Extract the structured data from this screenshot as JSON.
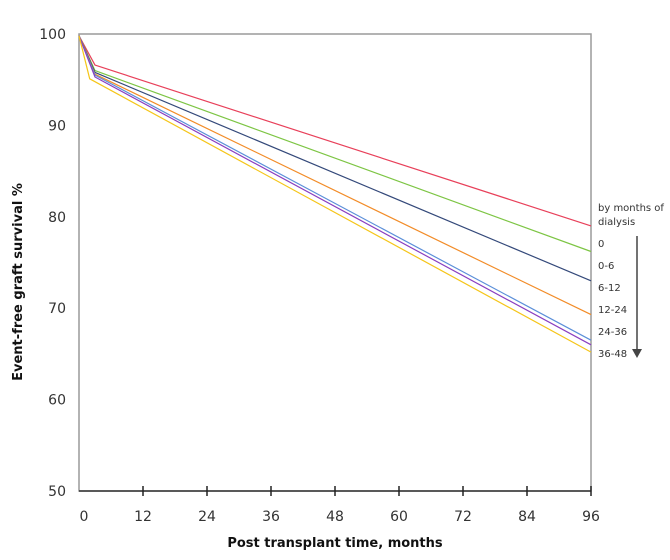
{
  "chart_data": {
    "type": "line",
    "title": "",
    "xlabel": "Post transplant time, months",
    "ylabel": "Event-free graft survival %",
    "xlim": [
      0,
      96
    ],
    "ylim": [
      50,
      100
    ],
    "xticks": [
      0,
      12,
      24,
      36,
      48,
      60,
      72,
      84,
      96
    ],
    "xtick_labels": [
      "0",
      "12",
      "24",
      "36",
      "48",
      "60",
      "72",
      "84",
      "96"
    ],
    "yticks": [
      50,
      60,
      70,
      80,
      90,
      100
    ],
    "ytick_labels": [
      "50",
      "60",
      "70",
      "80",
      "90",
      "100"
    ],
    "grid": false,
    "legend": {
      "title": "by months of dialysis",
      "title_lines": [
        "by months of",
        "dialysis"
      ],
      "placement": "right",
      "arrow": "down"
    },
    "series": [
      {
        "name": "0",
        "color": "#e8405a",
        "x": [
          0,
          3,
          96
        ],
        "y": [
          99.8,
          96.6,
          79.0
        ]
      },
      {
        "name": "0-6",
        "color": "#7dc544",
        "x": [
          0,
          3,
          96
        ],
        "y": [
          99.8,
          96.0,
          76.2
        ]
      },
      {
        "name": "6-12",
        "color": "#34497a",
        "x": [
          0,
          3,
          96
        ],
        "y": [
          99.8,
          95.8,
          73.0
        ]
      },
      {
        "name": "12-24",
        "color": "#f28c28",
        "x": [
          0,
          3,
          96
        ],
        "y": [
          99.8,
          95.6,
          69.3
        ]
      },
      {
        "name": "24-36",
        "color": "#5b8fd9",
        "x": [
          0,
          3,
          96
        ],
        "y": [
          99.8,
          95.5,
          66.5
        ]
      },
      {
        "name": "",
        "color": "#8a3fc0",
        "x": [
          0,
          3,
          96
        ],
        "y": [
          99.8,
          95.3,
          66.0
        ]
      },
      {
        "name": "36-48",
        "color": "#f5c518",
        "x": [
          0,
          2,
          96
        ],
        "y": [
          99.8,
          95.1,
          65.2
        ]
      }
    ]
  }
}
